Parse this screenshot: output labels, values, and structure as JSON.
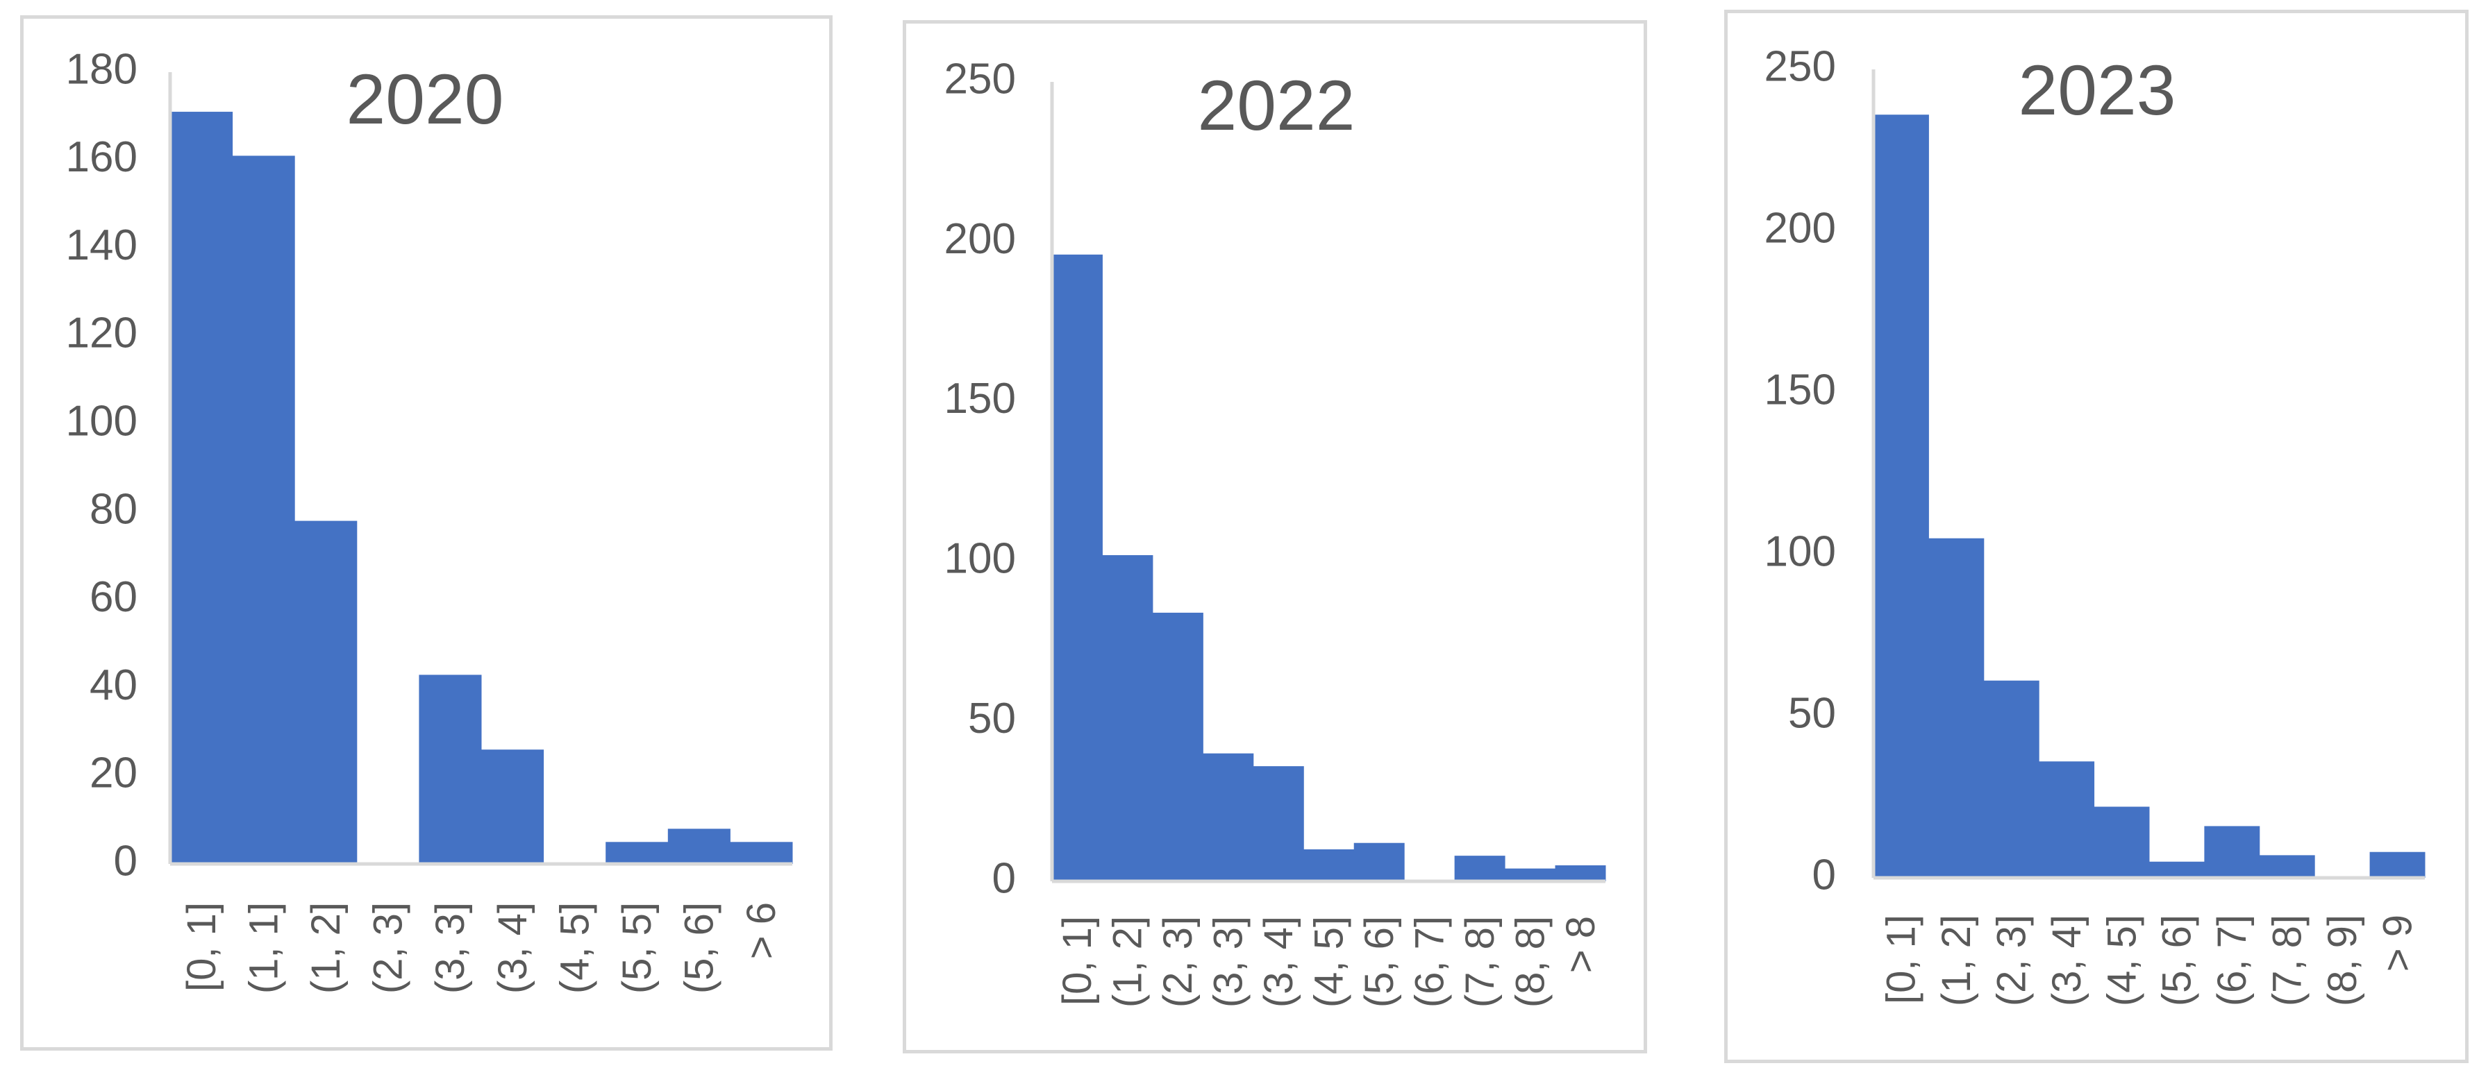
{
  "chart_data": [
    {
      "type": "bar",
      "title": "2020",
      "categories": [
        "[0, 1]",
        "(1, 1]",
        "(1, 2]",
        "(2, 3]",
        "(3, 3]",
        "(3, 4]",
        "(4, 5]",
        "(5, 5]",
        "(5, 6]",
        "> 6"
      ],
      "values": [
        171,
        161,
        78,
        0,
        43,
        26,
        0,
        5,
        8,
        5
      ],
      "yticks": [
        0,
        20,
        40,
        60,
        80,
        100,
        120,
        140,
        160,
        180
      ],
      "ylim": [
        0,
        180
      ],
      "xlabel": "",
      "ylabel": "",
      "color": "#4472c4",
      "grid": false,
      "legend": "none"
    },
    {
      "type": "bar",
      "title": "2022",
      "categories": [
        "[0, 1]",
        "(1, 2]",
        "(2, 3]",
        "(3, 3]",
        "(3, 4]",
        "(4, 5]",
        "(5, 6]",
        "(6, 7]",
        "(7, 8]",
        "(8, 8]",
        "> 8"
      ],
      "values": [
        196,
        102,
        84,
        40,
        36,
        10,
        12,
        0,
        8,
        4,
        5
      ],
      "yticks": [
        0,
        50,
        100,
        150,
        200,
        250
      ],
      "ylim": [
        0,
        250
      ],
      "xlabel": "",
      "ylabel": "",
      "color": "#4472c4",
      "grid": false,
      "legend": "none"
    },
    {
      "type": "bar",
      "title": "2023",
      "categories": [
        "[0, 1]",
        "(1, 2]",
        "(2, 3]",
        "(3, 4]",
        "(4, 5]",
        "(5, 6]",
        "(6, 7]",
        "(7, 8]",
        "(8, 9]",
        "> 9"
      ],
      "values": [
        236,
        105,
        61,
        36,
        22,
        5,
        16,
        7,
        0,
        8
      ],
      "yticks": [
        0,
        50,
        100,
        150,
        200,
        250
      ],
      "ylim": [
        0,
        250
      ],
      "xlabel": "",
      "ylabel": "",
      "color": "#4472c4",
      "grid": false,
      "legend": "none"
    }
  ]
}
